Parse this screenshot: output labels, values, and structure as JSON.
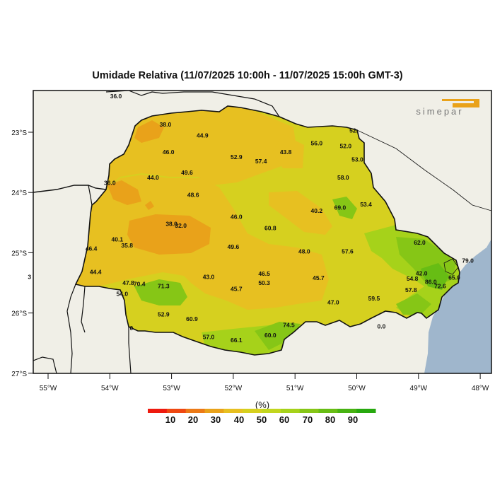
{
  "title": "Umidade Relativa (11/07/2025 10:00h - 11/07/2025 15:00h GMT-3)",
  "logo_text": "simepar",
  "colors": {
    "ocean": "#9fb6cc",
    "land": "#f0efe7",
    "logo_accent": "#e9a21a"
  },
  "axes": {
    "lon_ticks": [
      "55°W",
      "54°W",
      "53°W",
      "52°W",
      "51°W",
      "50°W",
      "49°W",
      "48°W"
    ],
    "lat_ticks": [
      "23°S",
      "24°S",
      "25°S",
      "26°S",
      "27°S"
    ]
  },
  "stations": [
    {
      "lon": -53.9,
      "lat": -22.4,
      "label": "36.0"
    },
    {
      "lon": -53.1,
      "lat": -22.87,
      "label": "38.0"
    },
    {
      "lon": -52.5,
      "lat": -23.05,
      "label": "44.9"
    },
    {
      "lon": -53.05,
      "lat": -23.33,
      "label": "46.0"
    },
    {
      "lon": -51.95,
      "lat": -23.41,
      "label": "52.9"
    },
    {
      "lon": -51.55,
      "lat": -23.48,
      "label": "57.4"
    },
    {
      "lon": -51.15,
      "lat": -23.33,
      "label": "43.8"
    },
    {
      "lon": -50.65,
      "lat": -23.18,
      "label": "56.0"
    },
    {
      "lon": -50.18,
      "lat": -23.23,
      "label": "52.0"
    },
    {
      "lon": -50.05,
      "lat": -22.97,
      "label": "52."
    },
    {
      "lon": -49.99,
      "lat": -23.45,
      "label": "53.0"
    },
    {
      "lon": -52.75,
      "lat": -23.67,
      "label": "49.6"
    },
    {
      "lon": -53.3,
      "lat": -23.75,
      "label": "44.0"
    },
    {
      "lon": -54.0,
      "lat": -23.84,
      "label": "36.0"
    },
    {
      "lon": -52.65,
      "lat": -24.04,
      "label": "48.6"
    },
    {
      "lon": -50.22,
      "lat": -23.75,
      "label": "58.0"
    },
    {
      "lon": -50.27,
      "lat": -24.25,
      "label": "69.0"
    },
    {
      "lon": -49.85,
      "lat": -24.2,
      "label": "53.4"
    },
    {
      "lon": -50.65,
      "lat": -24.3,
      "label": "40.2"
    },
    {
      "lon": -51.95,
      "lat": -24.4,
      "label": "46.0"
    },
    {
      "lon": -53.0,
      "lat": -24.52,
      "label": "38.0"
    },
    {
      "lon": -52.85,
      "lat": -24.55,
      "label": "32.0"
    },
    {
      "lon": -51.4,
      "lat": -24.59,
      "label": "60.8"
    },
    {
      "lon": -53.88,
      "lat": -24.78,
      "label": "40.1"
    },
    {
      "lon": -53.72,
      "lat": -24.88,
      "label": "35.8"
    },
    {
      "lon": -54.3,
      "lat": -24.93,
      "label": "46.4"
    },
    {
      "lon": -52.0,
      "lat": -24.9,
      "label": "49.6"
    },
    {
      "lon": -50.85,
      "lat": -24.98,
      "label": "48.0"
    },
    {
      "lon": -50.15,
      "lat": -24.98,
      "label": "57.6"
    },
    {
      "lon": -48.98,
      "lat": -24.83,
      "label": "62.0"
    },
    {
      "lon": -54.23,
      "lat": -25.32,
      "label": "44.4"
    },
    {
      "lon": -55.3,
      "lat": -25.4,
      "label": "3"
    },
    {
      "lon": -53.7,
      "lat": -25.5,
      "label": "47.8"
    },
    {
      "lon": -53.52,
      "lat": -25.52,
      "label": "70.4"
    },
    {
      "lon": -53.13,
      "lat": -25.55,
      "label": "71.3"
    },
    {
      "lon": -52.4,
      "lat": -25.4,
      "label": "43.0"
    },
    {
      "lon": -51.5,
      "lat": -25.35,
      "label": "46.5"
    },
    {
      "lon": -51.5,
      "lat": -25.5,
      "label": "50.3"
    },
    {
      "lon": -50.62,
      "lat": -25.42,
      "label": "45.7"
    },
    {
      "lon": -51.95,
      "lat": -25.6,
      "label": "45.7"
    },
    {
      "lon": -53.8,
      "lat": -25.68,
      "label": "54.0"
    },
    {
      "lon": -48.65,
      "lat": -25.55,
      "label": "72.6"
    },
    {
      "lon": -48.95,
      "lat": -25.34,
      "label": "42.0"
    },
    {
      "lon": -49.1,
      "lat": -25.43,
      "label": "54.8"
    },
    {
      "lon": -48.8,
      "lat": -25.48,
      "label": "86.0"
    },
    {
      "lon": -48.42,
      "lat": -25.41,
      "label": "65.0"
    },
    {
      "lon": -48.2,
      "lat": -25.13,
      "label": "79.0"
    },
    {
      "lon": -49.12,
      "lat": -25.62,
      "label": "57.8"
    },
    {
      "lon": -50.38,
      "lat": -25.82,
      "label": "47.0"
    },
    {
      "lon": -49.72,
      "lat": -25.76,
      "label": "59.5"
    },
    {
      "lon": -53.13,
      "lat": -26.02,
      "label": "52.9"
    },
    {
      "lon": -52.67,
      "lat": -26.1,
      "label": "60.9"
    },
    {
      "lon": -53.65,
      "lat": -26.25,
      "label": "0"
    },
    {
      "lon": -52.4,
      "lat": -26.4,
      "label": "57.0"
    },
    {
      "lon": -51.95,
      "lat": -26.45,
      "label": "66.1"
    },
    {
      "lon": -51.4,
      "lat": -26.37,
      "label": "60.0"
    },
    {
      "lon": -51.1,
      "lat": -26.2,
      "label": "74.5"
    },
    {
      "lon": -49.6,
      "lat": -26.22,
      "label": "0.0"
    }
  ],
  "colorbar": {
    "unit": "(%)",
    "labels": [
      "10",
      "20",
      "30",
      "40",
      "50",
      "60",
      "70",
      "80",
      "90"
    ],
    "colors": [
      "#ee1a0f",
      "#ef4812",
      "#ec7a17",
      "#e9a21a",
      "#e7c021",
      "#d6d01f",
      "#c2d61e",
      "#a6d21a",
      "#86c616",
      "#67bd14",
      "#47b212",
      "#27a80f"
    ]
  }
}
